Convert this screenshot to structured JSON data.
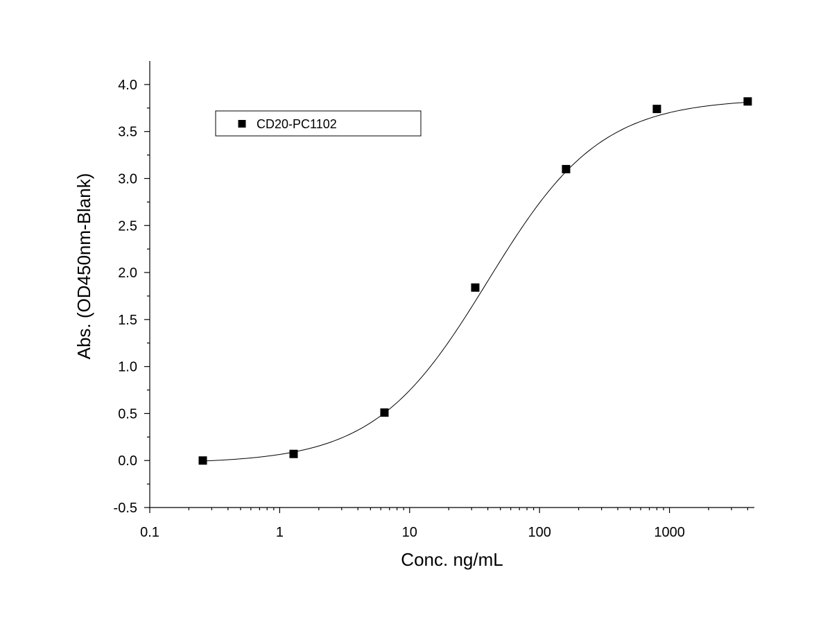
{
  "chart_data": {
    "type": "scatter",
    "xlabel": "Conc. ng/mL",
    "ylabel": "Abs. (OD450nm-Blank)",
    "x_scale": "log",
    "xlim": [
      0.1,
      4500
    ],
    "ylim": [
      -0.5,
      4.25
    ],
    "x_ticks": [
      {
        "value": 0.1,
        "label": "0.1"
      },
      {
        "value": 1,
        "label": "1"
      },
      {
        "value": 10,
        "label": "10"
      },
      {
        "value": 100,
        "label": "100"
      },
      {
        "value": 1000,
        "label": "1000"
      }
    ],
    "y_ticks": [
      {
        "value": -0.5,
        "label": "-0.5"
      },
      {
        "value": 0.0,
        "label": "0.0"
      },
      {
        "value": 0.5,
        "label": "0.5"
      },
      {
        "value": 1.0,
        "label": "1.0"
      },
      {
        "value": 1.5,
        "label": "1.5"
      },
      {
        "value": 2.0,
        "label": "2.0"
      },
      {
        "value": 2.5,
        "label": "2.5"
      },
      {
        "value": 3.0,
        "label": "3.0"
      },
      {
        "value": 3.5,
        "label": "3.5"
      },
      {
        "value": 4.0,
        "label": "4.0"
      }
    ],
    "grid": false,
    "legend_position": "top-left",
    "series": [
      {
        "name": "CD20-PC1102",
        "marker": "square",
        "color": "#000000",
        "fit": "sigmoid",
        "x": [
          0.256,
          1.28,
          6.4,
          32,
          160,
          800,
          4000
        ],
        "y": [
          0.0,
          0.07,
          0.51,
          1.84,
          3.1,
          3.74,
          3.82
        ]
      }
    ]
  }
}
